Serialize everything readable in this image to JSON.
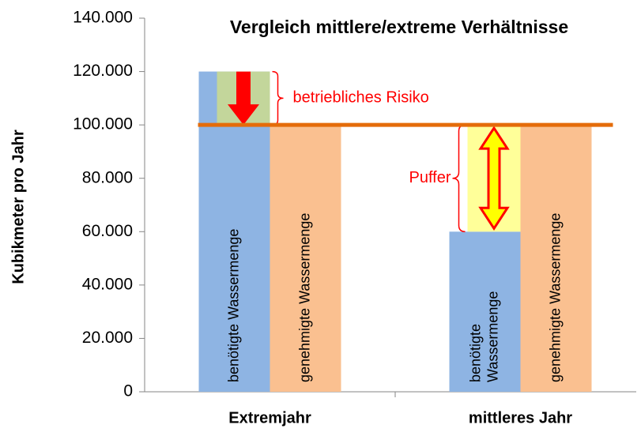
{
  "chart_data": {
    "type": "bar",
    "title": "Vergleich mittlere/extreme Verhältnisse",
    "y_axis_label": "Kubikmeter pro Jahr",
    "categories": [
      "Extremjahr",
      "mittleres Jahr"
    ],
    "series": [
      {
        "name": "benötigte Wassermenge",
        "color": "#8eb4e3",
        "values": [
          120000,
          60000
        ]
      },
      {
        "name": "genehmigte Wassermenge",
        "color": "#fac090",
        "values": [
          100000,
          100000
        ]
      }
    ],
    "threshold": {
      "value": 100000,
      "color": "#e46c0a"
    },
    "annotations": [
      {
        "text": "betriebliches Risiko",
        "category": 0,
        "color": "#c3d69b"
      },
      {
        "text": "Puffer",
        "category": 1,
        "color": "#ffff99"
      }
    ],
    "ylim": [
      0,
      140000
    ],
    "yticks": [
      0,
      {
        "value": 20000,
        "label": "20.000"
      },
      {
        "value": 40000,
        "label": "40.000"
      },
      {
        "value": 60000,
        "label": "60.000"
      },
      {
        "value": 80000,
        "label": "80.000"
      },
      {
        "value": 100000,
        "label": "100.000"
      },
      {
        "value": 120000,
        "label": "120.000"
      },
      {
        "value": 140000,
        "label": "140.000"
      }
    ],
    "grid": false
  }
}
